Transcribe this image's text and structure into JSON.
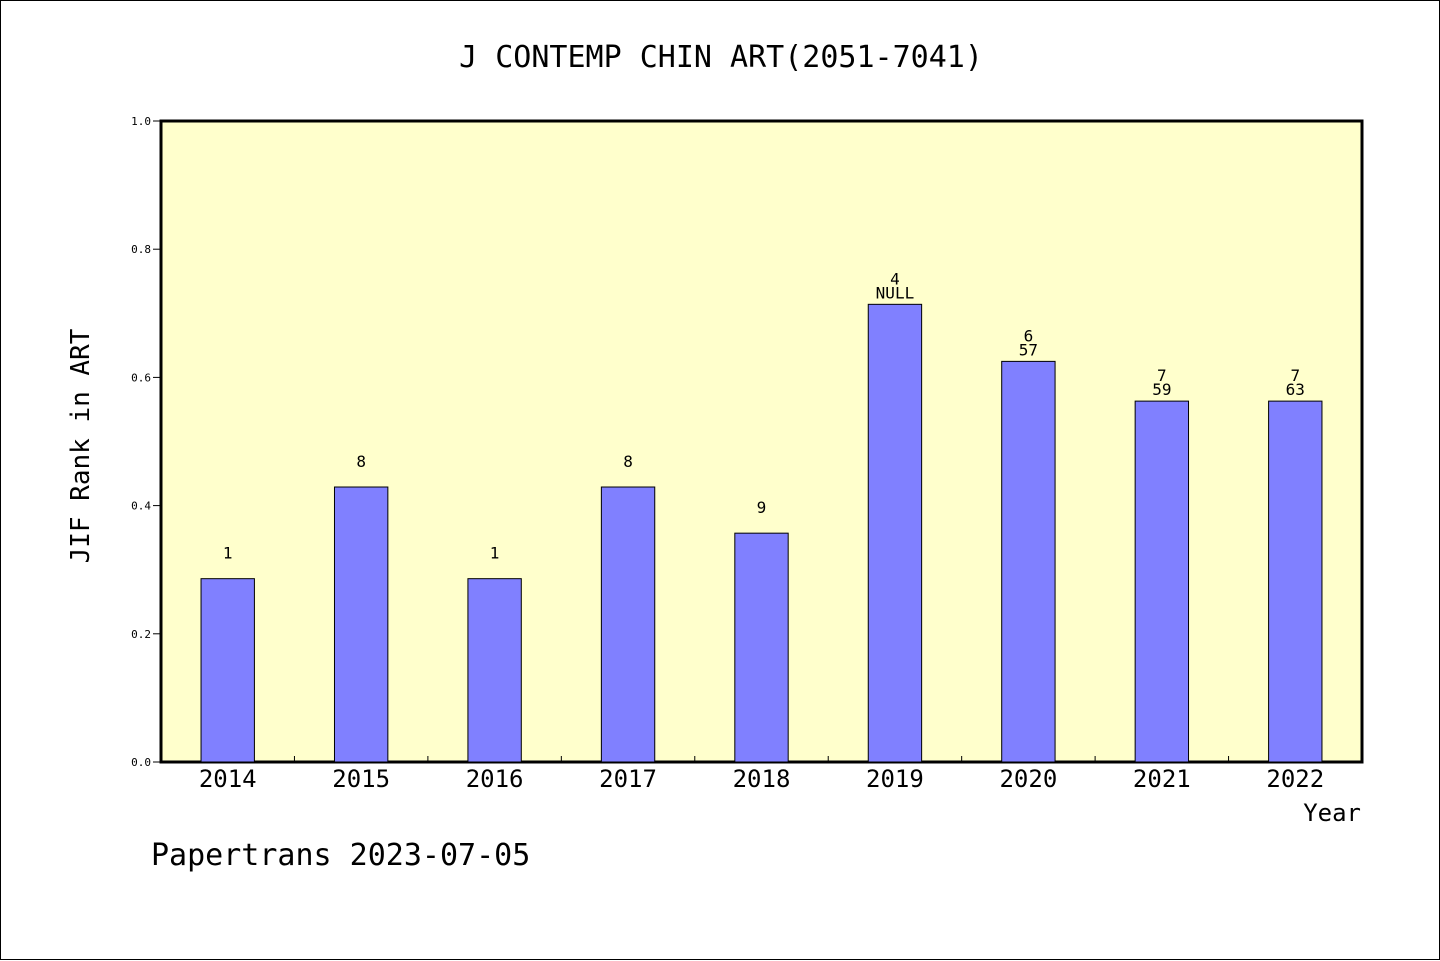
{
  "chart_data": {
    "type": "bar",
    "title": "J CONTEMP CHIN ART(2051-7041)",
    "xlabel": "Year",
    "ylabel": "JIF Rank in ART",
    "ylim": [
      0,
      1.0
    ],
    "yticks": [
      "0.0",
      "0.2",
      "0.4",
      "0.6",
      "0.8",
      "1.0"
    ],
    "categories": [
      "2014",
      "2015",
      "2016",
      "2017",
      "2018",
      "2019",
      "2020",
      "2021",
      "2022"
    ],
    "values": [
      0.286,
      0.429,
      0.286,
      0.429,
      0.357,
      0.714,
      0.625,
      0.563,
      0.563
    ],
    "labels_top": [
      "",
      "",
      "",
      "",
      "",
      "4",
      "6",
      "7",
      "7"
    ],
    "labels_bottom": [
      "1",
      "8",
      "1",
      "8",
      "9",
      "NULL",
      "57",
      "59",
      "63"
    ],
    "grid": false,
    "colors": {
      "plot_background": "#ffffcc",
      "bar_fill": "#8080ff",
      "bar_stroke": "#000000"
    }
  },
  "footer": "Papertrans 2023-07-05"
}
